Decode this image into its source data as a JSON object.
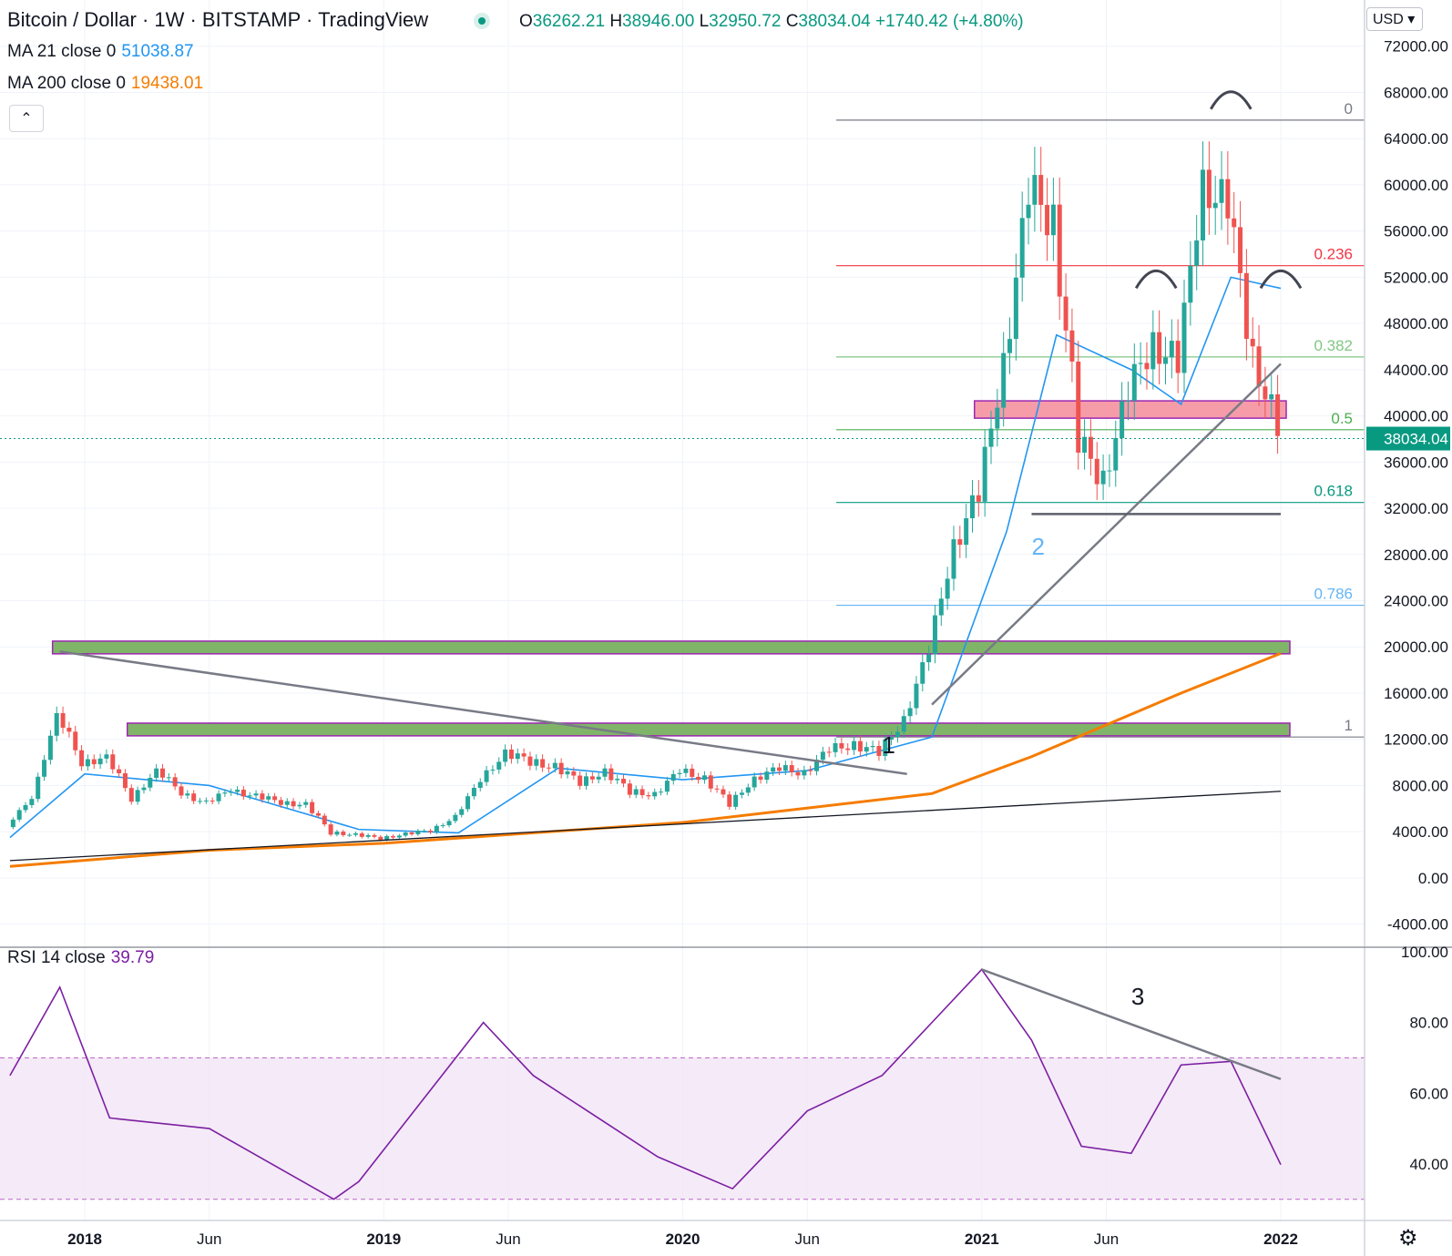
{
  "header": {
    "title": "Bitcoin / Dollar · 1W · BITSTAMP · TradingView",
    "ohlc": {
      "o_label": "O",
      "o": "36262.21",
      "h_label": "H",
      "h": "38946.00",
      "l_label": "L",
      "l": "32950.72",
      "c_label": "C",
      "c": "38034.04",
      "change": "+1740.42 (+4.80%)"
    },
    "collapse_glyph": "⌃",
    "currency": "USD ▾"
  },
  "indicators": {
    "ma21": {
      "label": "MA 21 close 0",
      "value": "51038.87",
      "color": "#2196f3"
    },
    "ma200": {
      "label": "MA 200 close 0",
      "value": "19438.01",
      "color": "#f57c00"
    },
    "rsi": {
      "label": "RSI 14 close",
      "value": "39.79",
      "color": "#7b1fa2"
    }
  },
  "colors": {
    "up": "#26a69a",
    "down": "#ef5350",
    "grid": "#f0f3fa",
    "zone_green": "#6aa84f",
    "zone_pink": "#f48b9a"
  },
  "chart_data": [
    {
      "type": "line",
      "title": "Bitcoin / Dollar · 1W · BITSTAMP",
      "x_ticks": [
        "2018",
        "Jun",
        "2019",
        "Jun",
        "2020",
        "Jun",
        "2021",
        "Jun",
        "2022"
      ],
      "y_ticks": [
        "-4000.00",
        "0.00",
        "4000.00",
        "8000.00",
        "12000.00",
        "16000.00",
        "20000.00",
        "24000.00",
        "28000.00",
        "32000.00",
        "36000.00",
        "40000.00",
        "44000.00",
        "48000.00",
        "52000.00",
        "56000.00",
        "60000.00",
        "64000.00",
        "68000.00",
        "72000.00"
      ],
      "ylim": [
        -6000,
        76000
      ],
      "last_price_label": "38034.04",
      "series": [
        {
          "name": "BTC/USD close",
          "x": [
            "2017-10",
            "2017-11",
            "2017-12",
            "2018-01",
            "2018-02",
            "2018-03",
            "2018-04",
            "2018-05",
            "2018-06",
            "2018-07",
            "2018-08",
            "2018-09",
            "2018-10",
            "2018-11",
            "2018-12",
            "2019-01",
            "2019-02",
            "2019-03",
            "2019-04",
            "2019-05",
            "2019-06",
            "2019-07",
            "2019-08",
            "2019-09",
            "2019-10",
            "2019-11",
            "2019-12",
            "2020-01",
            "2020-02",
            "2020-03",
            "2020-04",
            "2020-05",
            "2020-06",
            "2020-07",
            "2020-08",
            "2020-09",
            "2020-10",
            "2020-11",
            "2020-12",
            "2021-01",
            "2021-02",
            "2021-03",
            "2021-04",
            "2021-05",
            "2021-06",
            "2021-07",
            "2021-08",
            "2021-09",
            "2021-10",
            "2021-11",
            "2021-12",
            "2022-01"
          ],
          "values": [
            4400,
            7000,
            14000,
            10200,
            10300,
            7000,
            9200,
            7500,
            6400,
            7700,
            7000,
            6600,
            6300,
            4000,
            3700,
            3450,
            3800,
            4100,
            5300,
            8500,
            10800,
            10100,
            9600,
            8300,
            9200,
            7500,
            7200,
            9300,
            8600,
            6400,
            8600,
            9500,
            9100,
            11100,
            11600,
            10800,
            13800,
            19600,
            29000,
            33000,
            45000,
            58800,
            57700,
            37300,
            35000,
            41500,
            47100,
            43800,
            61300,
            57000,
            46200,
            38034
          ]
        },
        {
          "name": "MA 21",
          "x": [
            "2017-10",
            "2018-01",
            "2018-06",
            "2018-12",
            "2019-04",
            "2019-08",
            "2020-01",
            "2020-06",
            "2020-11",
            "2021-02",
            "2021-04",
            "2021-07",
            "2021-09",
            "2021-11",
            "2022-01"
          ],
          "values": [
            3500,
            9000,
            8000,
            4200,
            3900,
            9500,
            8500,
            9300,
            12200,
            30000,
            47000,
            44000,
            41000,
            52000,
            51038.87
          ]
        },
        {
          "name": "MA 200",
          "x": [
            "2017-10",
            "2018-06",
            "2019-01",
            "2020-01",
            "2020-11",
            "2021-03",
            "2021-09",
            "2022-01"
          ],
          "values": [
            1000,
            2400,
            3000,
            4800,
            7300,
            10500,
            16000,
            19438.01
          ]
        }
      ]
    },
    {
      "type": "line",
      "title": "RSI 14 close",
      "y_ticks": [
        "40.00",
        "60.00",
        "80.00",
        "100.00"
      ],
      "ylim": [
        24,
        100
      ],
      "bands": [
        30,
        70
      ],
      "series": [
        {
          "name": "RSI 14",
          "x": [
            "2017-10",
            "2017-12",
            "2018-02",
            "2018-06",
            "2018-11",
            "2018-12",
            "2019-05",
            "2019-07",
            "2019-12",
            "2020-03",
            "2020-06",
            "2020-09",
            "2021-01",
            "2021-03",
            "2021-05",
            "2021-07",
            "2021-09",
            "2021-11",
            "2022-01"
          ],
          "values": [
            65,
            90,
            53,
            50,
            30,
            35,
            80,
            65,
            42,
            33,
            55,
            65,
            95,
            75,
            45,
            43,
            68,
            69,
            39.79
          ]
        }
      ]
    }
  ],
  "annotations": {
    "fib_labels": [
      "0",
      "0.236",
      "0.382",
      "0.5",
      "0.618",
      "0.786",
      "1"
    ],
    "fib_levels": [
      65600,
      53000,
      45100,
      38800,
      32500,
      23600,
      12200
    ],
    "fib_colors": [
      "#787b86",
      "#f23645",
      "#81c784",
      "#4caf50",
      "#089981",
      "#64b5f6",
      "#787b86"
    ],
    "wave_labels": [
      "1",
      "2",
      "3"
    ]
  }
}
